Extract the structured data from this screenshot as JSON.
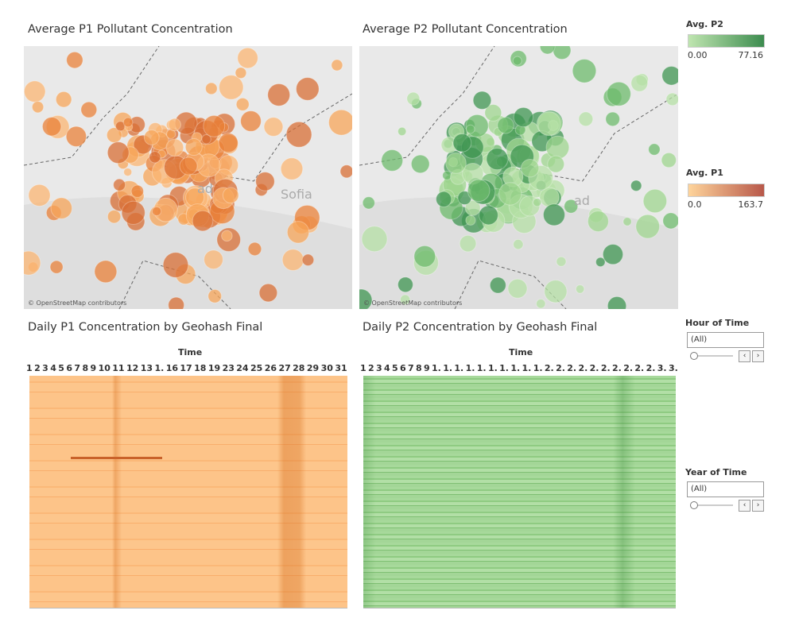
{
  "maps": [
    {
      "title": "Average P1 Pollutant Concentration",
      "place_labels": [
        "ad",
        "Sofia"
      ],
      "attribution": "© OpenStreetMap contributors"
    },
    {
      "title": "Average P2 Pollutant Concentration",
      "place_labels": [
        "ad"
      ],
      "attribution": "© OpenStreetMap contributors"
    }
  ],
  "heatmaps": [
    {
      "title": "Daily P1 Concentration by Geohash Final",
      "axis_title": "Time",
      "columns": [
        "1",
        "2",
        "3",
        "4",
        "5",
        "6",
        "7",
        "8",
        "9",
        "10",
        "11",
        "12",
        "13",
        "1.",
        "16",
        "17",
        "18",
        "19",
        "23",
        "24",
        "25",
        "26",
        "27",
        "28",
        "29",
        "30",
        "31"
      ]
    },
    {
      "title": "Daily P2 Concentration by Geohash Final",
      "axis_title": "Time",
      "columns": [
        "1",
        "2",
        "3",
        "4",
        "5",
        "6",
        "7",
        "8",
        "9",
        "1.",
        "1.",
        "1.",
        "1.",
        "1.",
        "1.",
        "1.",
        "1.",
        "1.",
        "1.",
        "2.",
        "2.",
        "2.",
        "2.",
        "2.",
        "2.",
        "2.",
        "2.",
        "2.",
        "2.",
        "3.",
        "3."
      ]
    }
  ],
  "legends": [
    {
      "title": "Avg. P2",
      "min": "0.00",
      "max": "77.16"
    },
    {
      "title": "Avg. P1",
      "min": "0.0",
      "max": "163.7"
    }
  ],
  "filters": [
    {
      "title": "Hour of Time",
      "value": "(All)"
    },
    {
      "title": "Year of Time",
      "value": "(All)"
    }
  ]
}
